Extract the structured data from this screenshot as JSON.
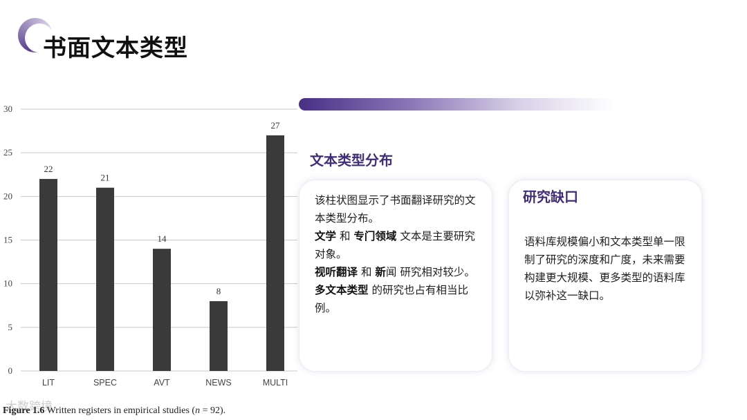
{
  "title": "书面文本类型",
  "section_heading": "文本类型分布",
  "left_card": {
    "l1a": "该柱状图显示了书面翻译研究的文本类型分布。",
    "l2a": "文学",
    "l2b": " 和 ",
    "l2c": "专门领域",
    "l2d": " 文本是主要研究对象。",
    "l3a": "视听翻译",
    "l3b": " 和 ",
    "l3c": "新",
    "l3d": "闻 研究相对较少。",
    "l4a": "多文本类型",
    "l4b": " 的研究也占有相当比例。"
  },
  "right_card": {
    "title": "研究缺口",
    "body": "语料库规模偏小和文本类型单一限制了研究的深度和广度，未来需要构建更大规模、更多类型的语料库以弥补这一缺口。"
  },
  "caption": {
    "fig": "Figure 1.6",
    "text": " Written registers in empirical studies (",
    "n": "n",
    "end": " = 92)."
  },
  "watermark": "大数跨境",
  "chart_data": {
    "type": "bar",
    "categories": [
      "LIT",
      "SPEC",
      "AVT",
      "NEWS",
      "MULTI"
    ],
    "values": [
      22,
      21,
      14,
      8,
      27
    ],
    "ylim": [
      0,
      30
    ],
    "yticks": [
      0,
      5,
      10,
      15,
      20,
      25,
      30
    ],
    "bar_color": "#3a3a3a",
    "grid": true
  },
  "colors": {
    "accent": "#3f2d7a"
  }
}
